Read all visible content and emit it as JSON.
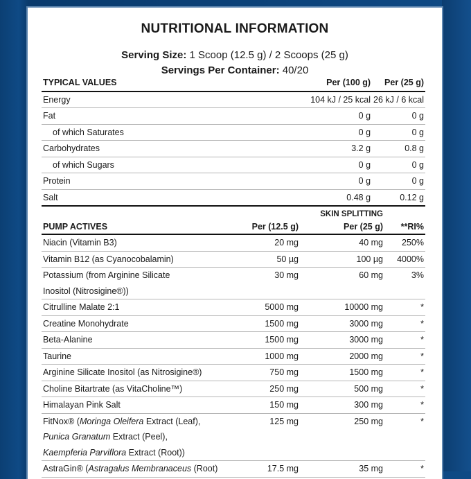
{
  "title": "NUTRITIONAL INFORMATION",
  "serving_size": {
    "label": "Serving Size:",
    "value": "1 Scoop (12.5 g) / 2 Scoops (25 g)"
  },
  "servings": {
    "label": "Servings Per Container:",
    "value": "40/20"
  },
  "typical": {
    "headers": [
      "TYPICAL VALUES",
      "Per (100 g)",
      "Per (25 g)"
    ],
    "rows": [
      [
        "Energy",
        "104 kJ / 25 kcal",
        "26 kJ / 6 kcal"
      ],
      [
        "Fat",
        "0 g",
        "0 g"
      ],
      [
        "of which Saturates",
        "0 g",
        "0 g"
      ],
      [
        "Carbohydrates",
        "3.2 g",
        "0.8 g"
      ],
      [
        "of which Sugars",
        "0 g",
        "0 g"
      ],
      [
        "Protein",
        "0 g",
        "0 g"
      ],
      [
        "Salt",
        "0.48 g",
        "0.12 g"
      ]
    ]
  },
  "pump": {
    "headers": [
      "PUMP ACTIVES",
      "Per (12.5 g)",
      "SKIN SPLITTING",
      "Per (25 g)",
      "**RI%"
    ],
    "rows": [
      [
        "Niacin (Vitamin B3)",
        "20 mg",
        "40 mg",
        "250%"
      ],
      [
        "Vitamin B12 (as Cyanocobalamin)",
        "50 µg",
        "100 µg",
        "4000%"
      ],
      [
        "Potassium (from Arginine Silicate",
        "30 mg",
        "60 mg",
        "3%"
      ],
      [
        "Citrulline Malate 2:1",
        "5000 mg",
        "10000 mg",
        "*"
      ],
      [
        "Creatine Monohydrate",
        "1500 mg",
        "3000 mg",
        "*"
      ],
      [
        "Beta-Alanine",
        "1500 mg",
        "3000 mg",
        "*"
      ],
      [
        "Taurine",
        "1000 mg",
        "2000 mg",
        "*"
      ],
      [
        "Arginine Silicate Inositol (as Nitrosigine®)",
        "750 mg",
        "1500 mg",
        "*"
      ],
      [
        "Choline Bitartrate (as VitaCholine™)",
        "250 mg",
        "500 mg",
        "*"
      ],
      [
        "Himalayan Pink Salt",
        "150 mg",
        "300 mg",
        "*"
      ],
      [
        "FitNox® (",
        "125 mg",
        "250 mg",
        "*"
      ],
      [
        "AstraGin® (",
        "17.5 mg",
        "35 mg",
        "*"
      ]
    ],
    "potassium_line2": "Inositol (Nitrosigine®))",
    "fitnox": [
      "Moringa Oleifera",
      " Extract (Leaf),",
      "Punica Granatum",
      " Extract (Peel),",
      "Kaempferia Parviflora",
      " Extract (Root))"
    ],
    "astragin": [
      "Astragalus Membranaceus",
      " (Root)"
    ]
  }
}
